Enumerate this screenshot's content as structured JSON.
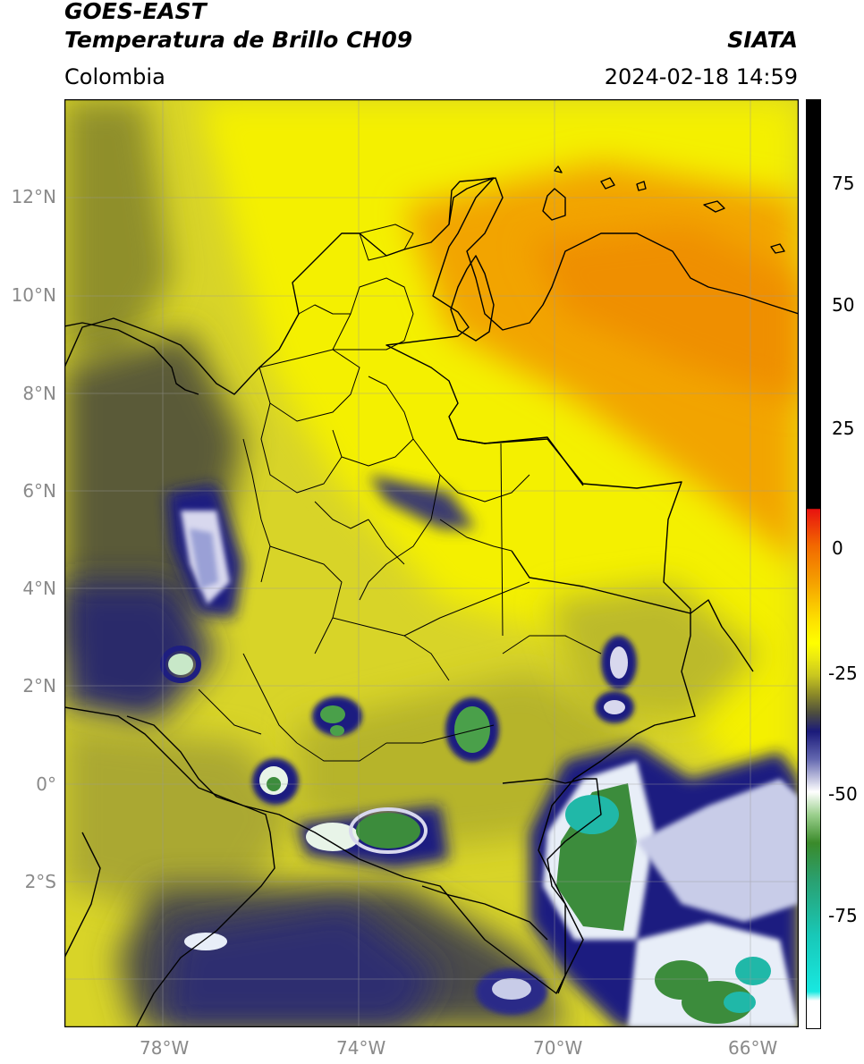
{
  "header": {
    "satellite": "GOES-EAST",
    "product": "Temperatura de Brillo CH09",
    "agency": "SIATA",
    "region": "Colombia",
    "timestamp": "2024-02-18 14:59"
  },
  "map": {
    "lon_range": [
      -80,
      -65
    ],
    "lat_range": [
      -5,
      14
    ],
    "lat_ticks": [
      "12°N",
      "10°N",
      "8°N",
      "6°N",
      "4°N",
      "2°N",
      "0°",
      "2°S"
    ],
    "lon_ticks": [
      "78°W",
      "74°W",
      "70°W",
      "66°W"
    ]
  },
  "colorbar": {
    "ticks": [
      "75",
      "50",
      "25",
      "0",
      "-25",
      "-50",
      "-75"
    ],
    "range": [
      -95,
      90
    ],
    "colors": {
      "warm": "#000000",
      "red": "#e8130f",
      "orange": "#f5a100",
      "yellow": "#ffff00",
      "olive": "#7a7a1f",
      "navy": "#11127c",
      "white": "#ffffff",
      "green": "#3a8a2a",
      "cyan": "#18e0d8"
    }
  }
}
